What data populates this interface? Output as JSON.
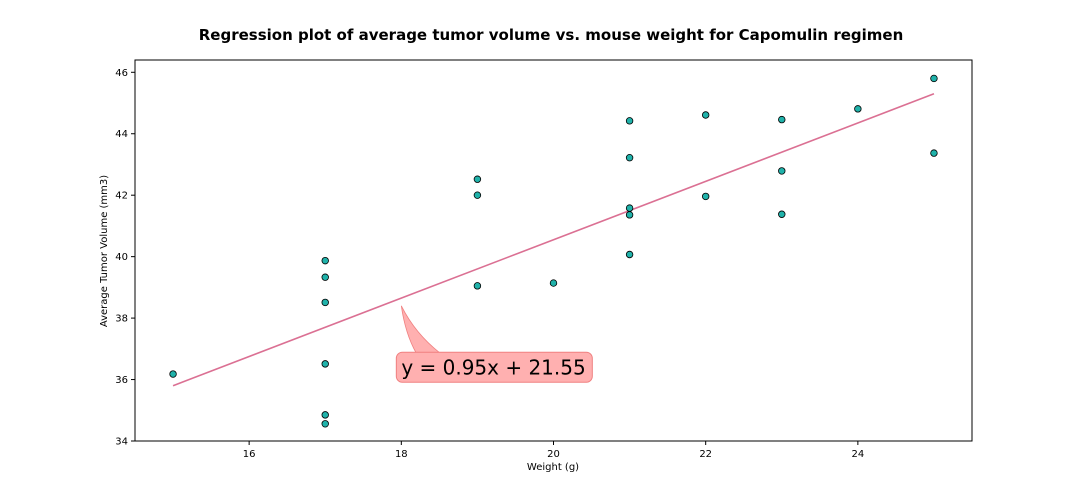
{
  "chart_data": {
    "type": "scatter",
    "title": "Regression plot of average tumor volume vs. mouse weight for Capomulin regimen",
    "xlabel": "Weight (g)",
    "ylabel": "Average Tumor Volume (mm3)",
    "xlim": [
      14.5,
      25.5
    ],
    "ylim": [
      34,
      46.4
    ],
    "xticks": [
      16,
      18,
      20,
      22,
      24
    ],
    "yticks": [
      34,
      36,
      38,
      40,
      42,
      44,
      46
    ],
    "grid": false,
    "points": [
      {
        "x": 15,
        "y": 36.18
      },
      {
        "x": 17,
        "y": 39.87
      },
      {
        "x": 17,
        "y": 39.33
      },
      {
        "x": 17,
        "y": 38.51
      },
      {
        "x": 17,
        "y": 36.51
      },
      {
        "x": 17,
        "y": 34.85
      },
      {
        "x": 17,
        "y": 34.56
      },
      {
        "x": 19,
        "y": 42.52
      },
      {
        "x": 19,
        "y": 42.0
      },
      {
        "x": 19,
        "y": 39.05
      },
      {
        "x": 20,
        "y": 39.14
      },
      {
        "x": 21,
        "y": 44.42
      },
      {
        "x": 21,
        "y": 43.22
      },
      {
        "x": 21,
        "y": 41.58
      },
      {
        "x": 21,
        "y": 41.36
      },
      {
        "x": 21,
        "y": 40.07
      },
      {
        "x": 22,
        "y": 44.61
      },
      {
        "x": 22,
        "y": 41.96
      },
      {
        "x": 23,
        "y": 44.46
      },
      {
        "x": 23,
        "y": 42.79
      },
      {
        "x": 23,
        "y": 41.38
      },
      {
        "x": 24,
        "y": 44.81
      },
      {
        "x": 25,
        "y": 45.8
      },
      {
        "x": 25,
        "y": 43.37
      }
    ],
    "regression": {
      "slope": 0.95,
      "intercept": 21.55,
      "x_range": [
        15,
        25
      ]
    },
    "annotation": {
      "text": "y = 0.95x + 21.55",
      "arrow_target": {
        "x": 18,
        "y": 38.4
      },
      "text_anchor": {
        "x": 18,
        "y": 36.4
      }
    },
    "colors": {
      "point_fill": "#20b2aa",
      "point_edge": "#000000",
      "line": "#db7093",
      "annotation_fill": "#ffb0b0",
      "annotation_edge": "#f08080"
    }
  }
}
